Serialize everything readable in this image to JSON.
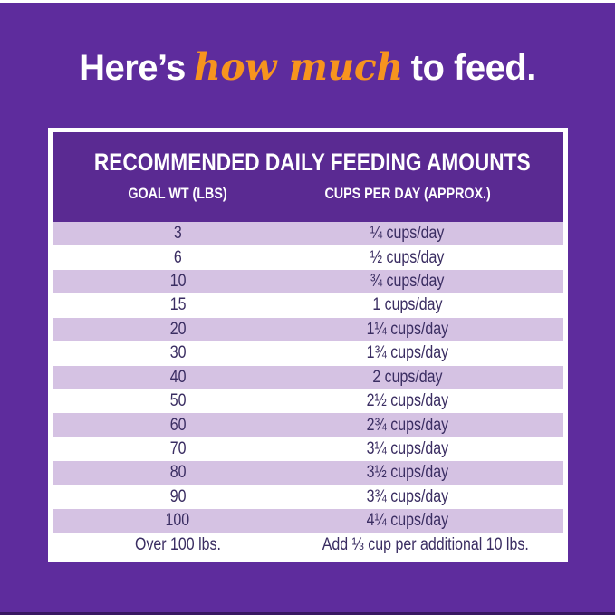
{
  "colors": {
    "background_purple": "#5E2C9D",
    "table_header_purple": "#5A2A92",
    "row_alt_purple": "#D5C2E3",
    "row_white": "#FFFFFF",
    "row_text_purple": "#3A2D62",
    "title_white": "#FFFFFF",
    "highlight_orange": "#F7941E",
    "frame_white": "#FFFFFF"
  },
  "title": {
    "prefix": "Here’s",
    "highlight": "how much",
    "suffix": "to feed."
  },
  "chart_data": {
    "type": "table",
    "title": "RECOMMENDED DAILY FEEDING AMOUNTS",
    "columns": [
      "GOAL WT (LBS)",
      "CUPS PER DAY (APPROX.)"
    ],
    "rows": [
      [
        "3",
        "¼ cups/day"
      ],
      [
        "6",
        "½ cups/day"
      ],
      [
        "10",
        "¾ cups/day"
      ],
      [
        "15",
        "1 cups/day"
      ],
      [
        "20",
        "1¼ cups/day"
      ],
      [
        "30",
        "1¾ cups/day"
      ],
      [
        "40",
        "2 cups/day"
      ],
      [
        "50",
        "2½ cups/day"
      ],
      [
        "60",
        "2¾ cups/day"
      ],
      [
        "70",
        "3¼ cups/day"
      ],
      [
        "80",
        "3½ cups/day"
      ],
      [
        "90",
        "3¾ cups/day"
      ],
      [
        "100",
        "4¼ cups/day"
      ],
      [
        "Over 100 lbs.",
        "Add ⅓ cup per additional 10 lbs."
      ]
    ],
    "numeric": {
      "goal_wt_lbs": [
        3,
        6,
        10,
        15,
        20,
        30,
        40,
        50,
        60,
        70,
        80,
        90,
        100
      ],
      "cups_per_day": [
        0.25,
        0.5,
        0.75,
        1,
        1.25,
        1.75,
        2,
        2.5,
        2.75,
        3.25,
        3.5,
        3.75,
        4.25
      ],
      "over_100_rule": "Add 1/3 cup per additional 10 lbs."
    },
    "layout": {
      "row_striping": "odd rows light purple, even rows white",
      "frame": "white border around table on purple background"
    }
  }
}
